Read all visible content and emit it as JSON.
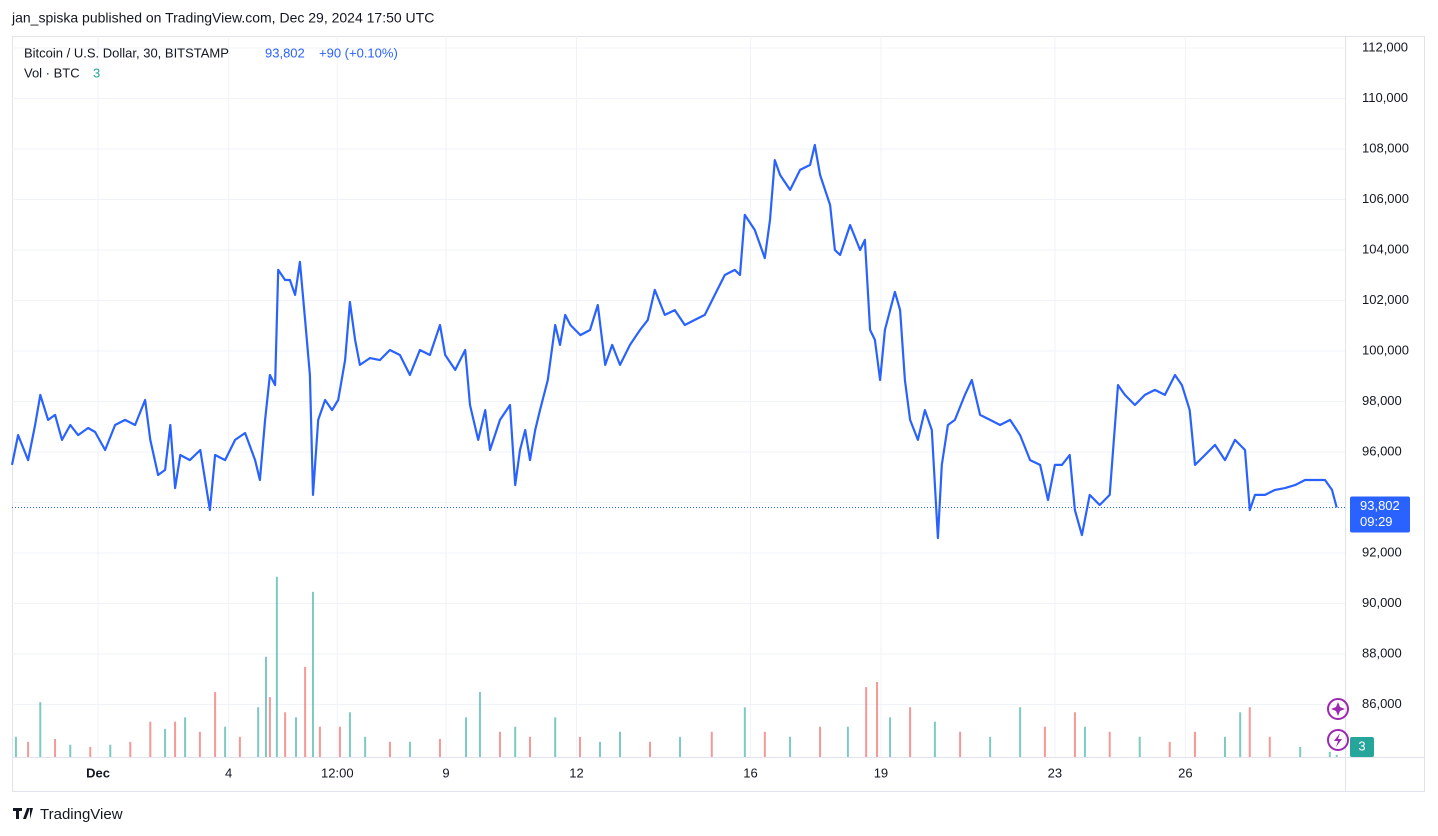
{
  "header": "jan_spiska published on TradingView.com, Dec 29, 2024 17:50 UTC",
  "footer": "TradingView",
  "chart_data": {
    "type": "line",
    "title": "Bitcoin / U.S. Dollar, 30, BITSTAMP",
    "price_label": "93,802",
    "change_label": "+90 (+0.10%)",
    "countdown": "09:29",
    "volume_title": "Vol · BTC",
    "color": "#2962ff",
    "grid": true,
    "x": [
      -0.98,
      -0.84,
      -0.61,
      -0.45,
      -0.33,
      -0.15,
      0.01,
      0.17,
      0.36,
      0.54,
      0.77,
      0.93,
      1.16,
      1.39,
      1.62,
      1.85,
      2.08,
      2.2,
      2.38,
      2.54,
      2.66,
      2.77,
      2.89,
      3.11,
      3.35,
      3.57,
      3.69,
      3.92,
      4.15,
      4.38,
      4.61,
      4.72,
      4.84,
      4.95,
      5.07,
      5.14,
      5.3,
      5.41,
      5.53,
      5.64,
      5.76,
      5.87,
      5.94,
      6.06,
      6.22,
      6.38,
      6.52,
      6.68,
      6.79,
      6.91,
      7.02,
      7.25,
      7.48,
      7.71,
      7.94,
      8.17,
      8.4,
      8.63,
      8.86,
      8.98,
      9.21,
      9.44,
      9.55,
      9.74,
      9.9,
      10.01,
      10.24,
      10.47,
      10.59,
      10.7,
      10.82,
      10.93,
      11.05,
      11.16,
      11.34,
      11.51,
      11.62,
      11.74,
      11.86,
      12.09,
      12.31,
      12.49,
      12.66,
      12.82,
      13,
      13.23,
      13.46,
      13.64,
      13.8,
      14.03,
      14.26,
      14.49,
      14.72,
      14.95,
      15.18,
      15.41,
      15.64,
      15.76,
      15.87,
      16.1,
      16.33,
      16.45,
      16.56,
      16.68,
      16.91,
      17.14,
      17.37,
      17.48,
      17.6,
      17.83,
      17.94,
      18.06,
      18.29,
      18.52,
      18.63,
      18.75,
      18.86,
      18.98,
      19.09,
      19.32,
      19.44,
      19.55,
      19.67,
      19.85,
      20.01,
      20.17,
      20.31,
      20.4,
      20.54,
      20.7,
      20.93,
      21.09,
      21.28,
      21.51,
      21.74,
      21.97,
      22.2,
      22.43,
      22.66,
      22.84,
      23,
      23.16,
      23.34,
      23.46,
      23.62,
      23.8,
      24.03,
      24.26,
      24.45,
      24.61,
      24.84,
      25.07,
      25.3,
      25.53,
      25.76,
      25.92,
      26.1,
      26.22,
      26.45,
      26.68,
      26.91,
      27.14,
      27.37,
      27.48,
      27.6,
      27.83,
      28.06,
      28.29,
      28.52,
      28.75,
      28.98,
      29.21,
      29.37,
      29.48
    ],
    "values": [
      95490,
      96670,
      95680,
      97070,
      98260,
      97270,
      97470,
      96480,
      97070,
      96670,
      96950,
      96790,
      96080,
      97070,
      97270,
      97070,
      98060,
      96480,
      95090,
      95290,
      97070,
      94570,
      95880,
      95680,
      96080,
      93700,
      95880,
      95680,
      96480,
      96750,
      95680,
      94890,
      97270,
      99050,
      98650,
      103210,
      102810,
      102810,
      102220,
      103530,
      101230,
      99050,
      94300,
      97270,
      98060,
      97660,
      98060,
      99640,
      101940,
      100440,
      99450,
      99720,
      99640,
      100040,
      99840,
      99050,
      100040,
      99840,
      101030,
      99840,
      99250,
      100040,
      97860,
      96480,
      97660,
      96080,
      97270,
      97860,
      94690,
      96080,
      96870,
      95680,
      96870,
      97660,
      98850,
      101030,
      100240,
      101430,
      101030,
      100630,
      100830,
      101820,
      99450,
      100240,
      99450,
      100240,
      100830,
      101230,
      102420,
      101430,
      101620,
      101030,
      101230,
      101430,
      102220,
      103010,
      103210,
      103010,
      105390,
      104790,
      103680,
      105190,
      107560,
      106970,
      106380,
      107170,
      107370,
      108160,
      106970,
      105780,
      104000,
      103800,
      104990,
      104000,
      104400,
      100830,
      100440,
      98850,
      100830,
      102340,
      101620,
      98850,
      97270,
      96480,
      97660,
      96870,
      92590,
      95490,
      97070,
      97270,
      98260,
      98850,
      97470,
      97270,
      97070,
      97270,
      96670,
      95680,
      95490,
      94100,
      95490,
      95490,
      95880,
      93700,
      92710,
      94300,
      93900,
      94300,
      98650,
      98260,
      97860,
      98260,
      98460,
      98260,
      99050,
      98650,
      97660,
      95490,
      95880,
      96280,
      95680,
      96480,
      96080,
      93700,
      94300,
      94300,
      94500,
      94570,
      94690,
      94890,
      94890,
      94890,
      94500,
      93802
    ],
    "volume": {
      "x": [
        -0.89,
        -0.61,
        -0.33,
        0.01,
        0.36,
        0.82,
        1.28,
        1.74,
        2.2,
        2.54,
        2.77,
        3,
        3.34,
        3.69,
        3.92,
        4.26,
        4.68,
        4.86,
        4.95,
        5.11,
        5.3,
        5.55,
        5.76,
        5.94,
        6.1,
        6.56,
        6.79,
        7.14,
        7.71,
        8.17,
        8.86,
        9.46,
        9.78,
        10.24,
        10.59,
        10.93,
        11.51,
        12.08,
        12.54,
        13,
        13.69,
        14.38,
        15.11,
        15.87,
        16.33,
        16.91,
        17.6,
        18.24,
        18.66,
        18.91,
        19.21,
        19.67,
        20.24,
        20.82,
        21.51,
        22.2,
        22.77,
        23.46,
        23.69,
        24.26,
        24.95,
        25.64,
        26.22,
        26.91,
        27.26,
        27.48,
        27.94,
        28.64,
        29.32,
        29.48
      ],
      "values": [
        28,
        21,
        76,
        25,
        17,
        14,
        17,
        21,
        49,
        39,
        49,
        55,
        35,
        90,
        42,
        28,
        69,
        139,
        83,
        250,
        62,
        55,
        125,
        229,
        42,
        42,
        62,
        28,
        21,
        21,
        25,
        55,
        90,
        35,
        42,
        28,
        55,
        28,
        21,
        35,
        21,
        28,
        35,
        69,
        35,
        28,
        42,
        42,
        97,
        104,
        55,
        69,
        49,
        35,
        28,
        69,
        42,
        62,
        42,
        35,
        28,
        21,
        35,
        28,
        62,
        69,
        28,
        14,
        7,
        3
      ],
      "colors": [
        "#26a69a",
        "#ef5350",
        "#26a69a",
        "#ef5350",
        "#26a69a",
        "#ef5350",
        "#26a69a",
        "#ef5350",
        "#ef5350",
        "#26a69a",
        "#ef5350",
        "#26a69a",
        "#ef5350",
        "#ef5350",
        "#26a69a",
        "#ef5350",
        "#26a69a",
        "#26a69a",
        "#ef5350",
        "#26a69a",
        "#ef5350",
        "#26a69a",
        "#ef5350",
        "#26a69a",
        "#ef5350",
        "#ef5350",
        "#26a69a",
        "#26a69a",
        "#ef5350",
        "#26a69a",
        "#ef5350",
        "#26a69a",
        "#26a69a",
        "#ef5350",
        "#26a69a",
        "#ef5350",
        "#26a69a",
        "#ef5350",
        "#26a69a",
        "#26a69a",
        "#ef5350",
        "#26a69a",
        "#ef5350",
        "#26a69a",
        "#ef5350",
        "#26a69a",
        "#ef5350",
        "#26a69a",
        "#ef5350",
        "#ef5350",
        "#26a69a",
        "#ef5350",
        "#26a69a",
        "#ef5350",
        "#26a69a",
        "#26a69a",
        "#ef5350",
        "#ef5350",
        "#26a69a",
        "#ef5350",
        "#26a69a",
        "#ef5350",
        "#ef5350",
        "#26a69a",
        "#26a69a",
        "#ef5350",
        "#ef5350",
        "#26a69a",
        "#26a69a",
        "#26a69a"
      ],
      "y2lim": [
        0,
        1000
      ]
    },
    "xlim": [
      -0.98,
      29.67
    ],
    "xticks": [
      {
        "value": 1,
        "label": "Dec"
      },
      4,
      {
        "value": 6.5,
        "label": "12:00"
      },
      9,
      12,
      16,
      19,
      23,
      26
    ],
    "ylim": [
      83920,
      112475
    ],
    "yticks": [
      {
        "value": 86000,
        "label": "86,000"
      },
      {
        "value": 88000,
        "label": "88,000"
      },
      {
        "value": 90000,
        "label": "90,000"
      },
      {
        "value": 92000,
        "label": "92,000"
      },
      {
        "value": 94000,
        "label": "94,000"
      },
      {
        "value": 96000,
        "label": "96,000"
      },
      {
        "value": 98000,
        "label": "98,000"
      },
      {
        "value": 100000,
        "label": "100,000"
      },
      {
        "value": 102000,
        "label": "102,000"
      },
      {
        "value": 104000,
        "label": "104,000"
      },
      {
        "value": 106000,
        "label": "106,000"
      },
      {
        "value": 108000,
        "label": "108,000"
      },
      {
        "value": 110000,
        "label": "110,000"
      },
      {
        "value": 112000,
        "label": "112,000"
      }
    ]
  }
}
